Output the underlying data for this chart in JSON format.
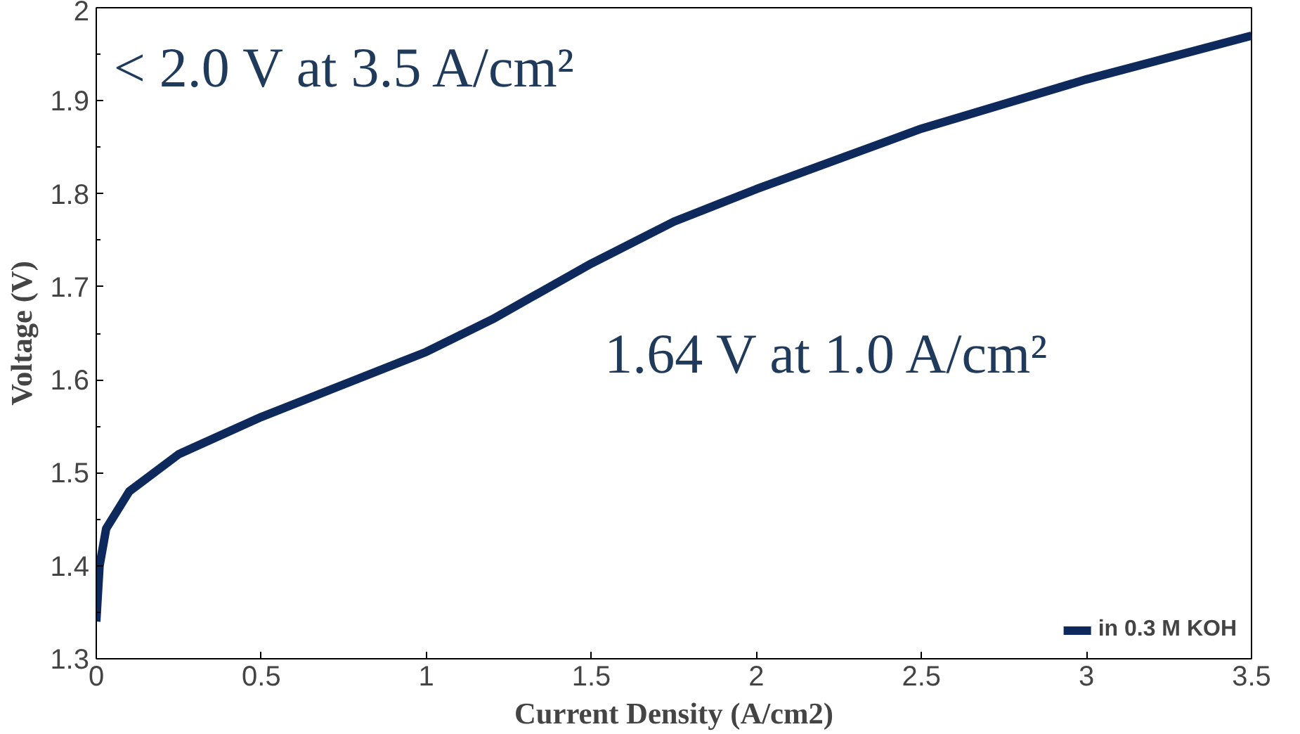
{
  "chart_data": {
    "type": "line",
    "xlabel": "Current Density (A/cm2)",
    "ylabel": "Voltage (V)",
    "annotations": [
      "< 2.0 V at 3.5 A/cm²",
      "1.64 V at 1.0 A/cm²"
    ],
    "x": [
      0,
      0.01,
      0.03,
      0.1,
      0.25,
      0.5,
      0.75,
      1.0,
      1.2,
      1.5,
      1.75,
      2.0,
      2.5,
      3.0,
      3.5
    ],
    "series": [
      {
        "name": "in 0.3 M KOH",
        "color": "#0e2a5c",
        "values": [
          1.34,
          1.4,
          1.44,
          1.48,
          1.52,
          1.56,
          1.595,
          1.63,
          1.665,
          1.725,
          1.77,
          1.805,
          1.87,
          1.923,
          1.97
        ]
      }
    ],
    "xlim": [
      0,
      3.5
    ],
    "ylim": [
      1.3,
      2
    ],
    "xticks": [
      0,
      0.5,
      1,
      1.5,
      2,
      2.5,
      3,
      3.5
    ],
    "yticks": [
      1.3,
      1.4,
      1.5,
      1.6,
      1.7,
      1.8,
      1.9,
      2
    ],
    "grid": false,
    "legend": "bottom right",
    "marker": "none",
    "line_style": "solid"
  }
}
